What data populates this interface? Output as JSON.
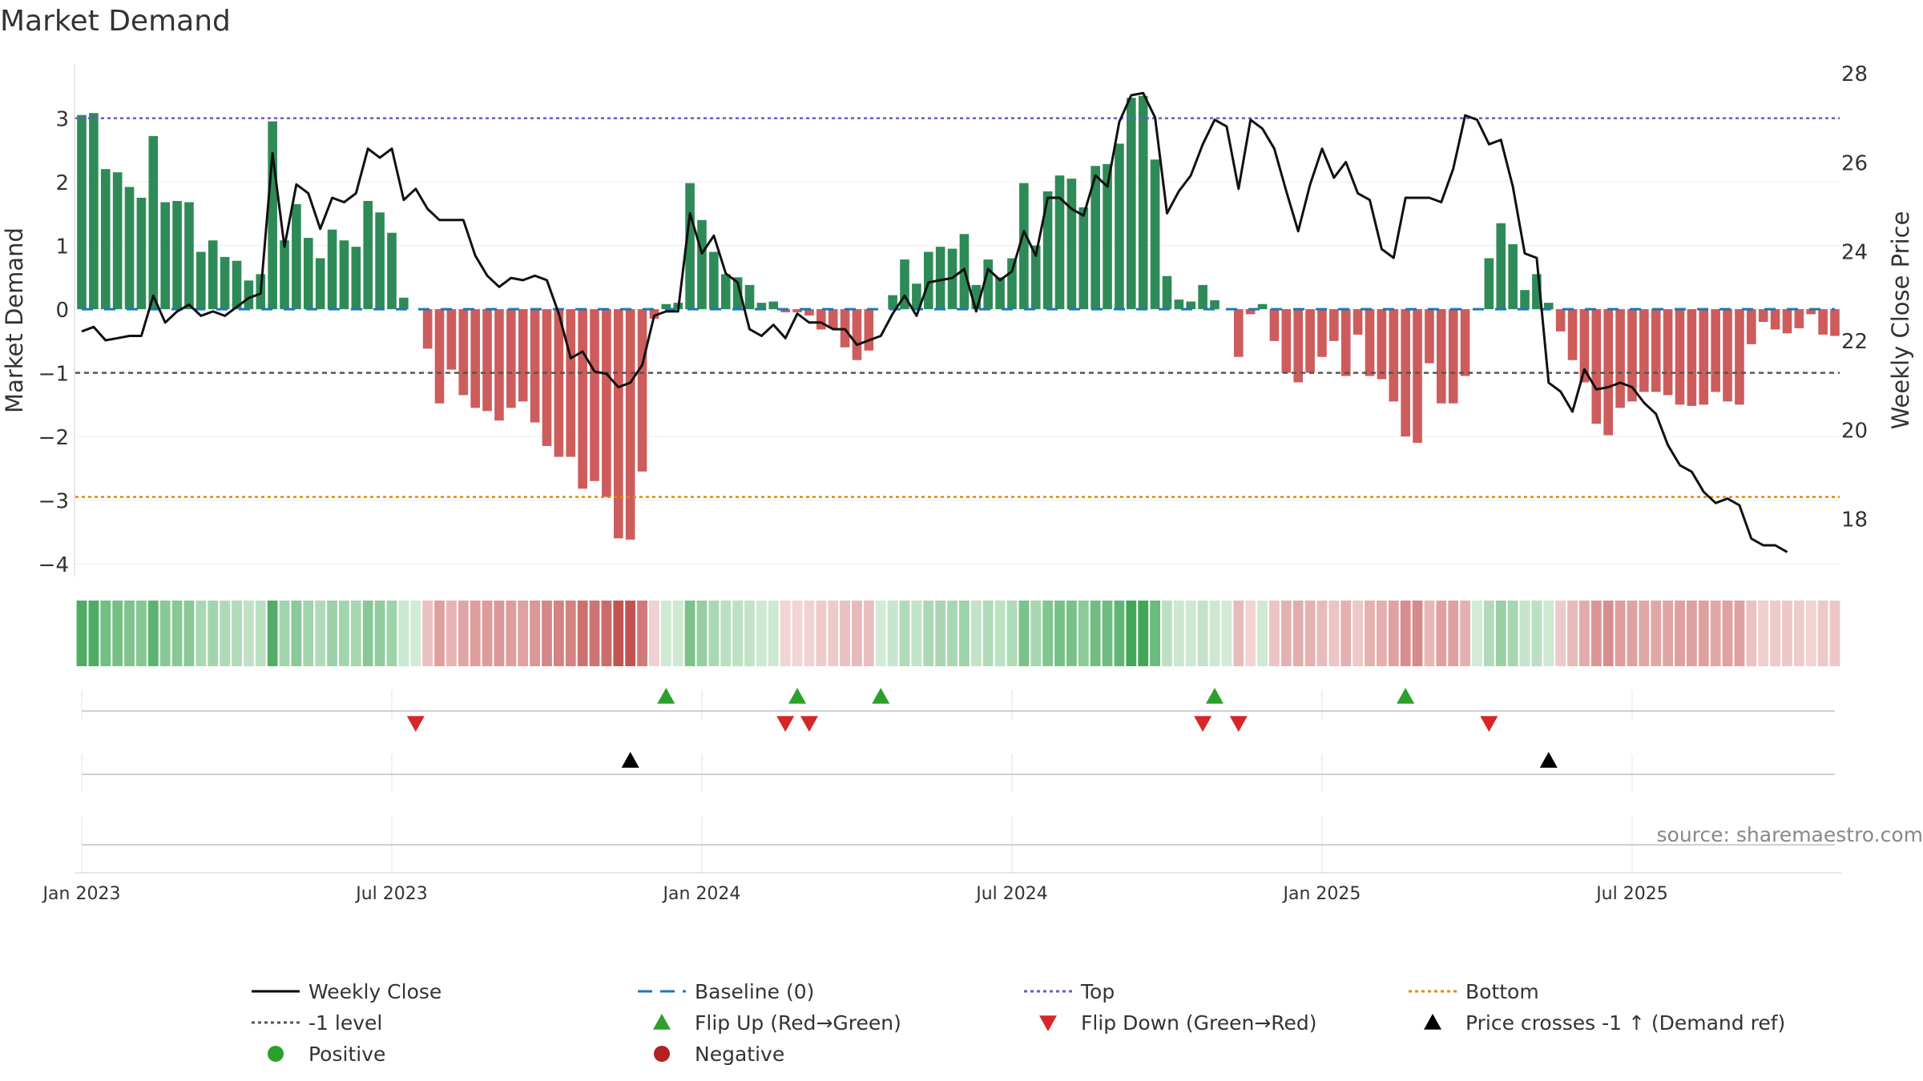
{
  "chart_data": {
    "type": "bar",
    "title": "Market Demand",
    "ylabel": "Market Demand",
    "ylabel_right": "Weekly Close Price",
    "ylim": [
      -4.2,
      3.85
    ],
    "ylim_right": [
      16.7,
      28.2
    ],
    "yticks": [
      {
        "v": 3,
        "label": "3"
      },
      {
        "v": 2,
        "label": "2"
      },
      {
        "v": 1,
        "label": "1"
      },
      {
        "v": 0,
        "label": "0"
      },
      {
        "v": -1,
        "label": "−1"
      },
      {
        "v": -2,
        "label": "−2"
      },
      {
        "v": -3,
        "label": "−3"
      },
      {
        "v": -4,
        "label": "−4"
      }
    ],
    "yticks_right": [
      {
        "v": 28,
        "label": "28"
      },
      {
        "v": 26,
        "label": "26"
      },
      {
        "v": 24,
        "label": "24"
      },
      {
        "v": 22,
        "label": "22"
      },
      {
        "v": 20,
        "label": "20"
      },
      {
        "v": 18,
        "label": "18"
      }
    ],
    "xticks": [
      {
        "week": 1,
        "label": "Jan 2023"
      },
      {
        "week": 27,
        "label": "Jul 2023"
      },
      {
        "week": 53,
        "label": "Jan 2024"
      },
      {
        "week": 79,
        "label": "Jul 2024"
      },
      {
        "week": 105,
        "label": "Jan 2025"
      },
      {
        "week": 131,
        "label": "Jul 2025"
      }
    ],
    "reference_lines": {
      "top": 3.0,
      "bottom": -2.95,
      "minus_one_level": -1.0,
      "baseline": 0
    },
    "series": [
      {
        "name": "Market Demand",
        "values": [
          3.05,
          3.08,
          2.2,
          2.15,
          1.92,
          1.75,
          2.72,
          1.68,
          1.7,
          1.68,
          0.9,
          1.08,
          0.82,
          0.76,
          0.45,
          0.55,
          2.95,
          1.08,
          1.65,
          1.12,
          0.8,
          1.25,
          1.08,
          0.98,
          1.7,
          1.52,
          1.2,
          0.18,
          0,
          -0.62,
          -1.48,
          -0.95,
          -1.35,
          -1.55,
          -1.6,
          -1.75,
          -1.55,
          -1.45,
          -1.78,
          -2.15,
          -2.32,
          -2.32,
          -2.82,
          -2.7,
          -2.95,
          -3.6,
          -3.62,
          -2.55,
          -0.15,
          0.08,
          0.1,
          1.98,
          1.4,
          0.9,
          0.55,
          0.5,
          0.38,
          0.1,
          0.12,
          -0.05,
          -0.05,
          -0.1,
          -0.32,
          -0.3,
          -0.6,
          -0.8,
          -0.65,
          0,
          0.22,
          0.78,
          0.4,
          0.9,
          0.98,
          0.95,
          1.18,
          0.38,
          0.78,
          0.5,
          0.8,
          1.98,
          1.0,
          1.85,
          2.1,
          2.05,
          1.6,
          2.25,
          2.28,
          2.6,
          3.32,
          3.35,
          2.35,
          0.52,
          0.15,
          0.12,
          0.38,
          0.14,
          0,
          -0.75,
          -0.08,
          0.08,
          -0.5,
          -1.0,
          -1.15,
          -1.0,
          -0.75,
          -0.5,
          -1.05,
          -0.4,
          -1.05,
          -1.1,
          -1.45,
          -2.0,
          -2.1,
          -0.85,
          -1.48,
          -1.48,
          -1.05,
          0,
          0.8,
          1.35,
          1.02,
          0.3,
          0.55,
          0.1,
          -0.35,
          -0.8,
          -1.15,
          -1.8,
          -1.98,
          -1.55,
          -1.45,
          -1.3,
          -1.3,
          -1.35,
          -1.5,
          -1.52,
          -1.5,
          -1.3,
          -1.45,
          -1.5,
          -0.55,
          -0.2,
          -0.32,
          -0.38,
          -0.3,
          -0.08,
          -0.4,
          -0.42
        ]
      },
      {
        "name": "Weekly Close",
        "values": [
          22.2,
          22.3,
          22.0,
          22.05,
          22.1,
          22.1,
          23.0,
          22.4,
          22.65,
          22.8,
          22.55,
          22.65,
          22.55,
          22.75,
          22.95,
          23.05,
          26.2,
          24.1,
          25.5,
          25.3,
          24.5,
          25.2,
          25.1,
          25.3,
          26.3,
          26.1,
          26.3,
          25.15,
          25.4,
          24.95,
          24.7,
          24.7,
          24.7,
          23.9,
          23.45,
          23.2,
          23.4,
          23.35,
          23.45,
          23.35,
          22.6,
          21.6,
          21.75,
          21.3,
          21.25,
          20.95,
          21.05,
          21.45,
          22.55,
          22.65,
          22.65,
          24.85,
          23.95,
          24.35,
          23.5,
          23.3,
          22.25,
          22.1,
          22.35,
          22.05,
          22.6,
          22.4,
          22.4,
          22.25,
          22.25,
          21.9,
          22.0,
          22.1,
          22.6,
          23.0,
          22.55,
          23.3,
          23.35,
          23.4,
          23.6,
          22.65,
          23.6,
          23.35,
          23.55,
          24.45,
          23.9,
          25.2,
          25.2,
          24.95,
          24.8,
          25.7,
          25.45,
          26.9,
          27.5,
          27.55,
          27.0,
          24.85,
          25.35,
          25.7,
          26.4,
          26.95,
          26.8,
          25.4,
          26.95,
          26.75,
          26.3,
          25.35,
          24.45,
          25.5,
          26.3,
          25.65,
          26.0,
          25.3,
          25.15,
          24.05,
          23.85,
          25.2,
          25.2,
          25.2,
          25.1,
          25.85,
          27.05,
          26.95,
          26.4,
          26.5,
          25.45,
          23.95,
          23.85,
          21.05,
          20.85,
          20.4,
          21.35,
          20.9,
          20.95,
          21.05,
          20.95,
          20.6,
          20.35,
          19.65,
          19.2,
          19.05,
          18.6,
          18.35,
          18.45,
          18.3,
          17.55,
          17.4,
          17.4,
          17.25
        ]
      }
    ],
    "heat_strip": "Weekly demand shade (green = positive, red = negative)",
    "flip_up_weeks": [
      50,
      61,
      68,
      96,
      112
    ],
    "flip_down_weeks": [
      29,
      60,
      62,
      95,
      98,
      119
    ],
    "price_cross_weeks": [
      47,
      124
    ],
    "legend": [
      {
        "label": "Weekly Close",
        "marker": "solid-line",
        "color": "#000000"
      },
      {
        "label": "Baseline (0)",
        "marker": "dash-line",
        "color": "#1f77b4"
      },
      {
        "label": "Top",
        "marker": "dot-line",
        "color": "#6a5acd"
      },
      {
        "label": "Bottom",
        "marker": "dot-line",
        "color": "#e08a00"
      },
      {
        "label": "-1 level",
        "marker": "dot-line",
        "color": "#555555"
      },
      {
        "label": "Flip Up (Red→Green)",
        "marker": "triangle-up",
        "color": "#2ca02c"
      },
      {
        "label": "Flip Down (Green→Red)",
        "marker": "triangle-down",
        "color": "#d62728"
      },
      {
        "label": "Price crosses -1 ↑ (Demand ref)",
        "marker": "triangle-up",
        "color": "#000000"
      },
      {
        "label": "Positive",
        "marker": "circle",
        "color": "#2ca02c"
      },
      {
        "label": "Negative",
        "marker": "circle",
        "color": "#b22222"
      }
    ],
    "source": "source: sharemaestro.com",
    "colors": {
      "positive": "#2e8b57",
      "negative": "#cd5c5c",
      "top": "#6a5acd",
      "bottom": "#e08a00",
      "level": "#555555",
      "baseline": "#1f77b4",
      "flip_up": "#2ca02c",
      "flip_down": "#d62728"
    }
  }
}
